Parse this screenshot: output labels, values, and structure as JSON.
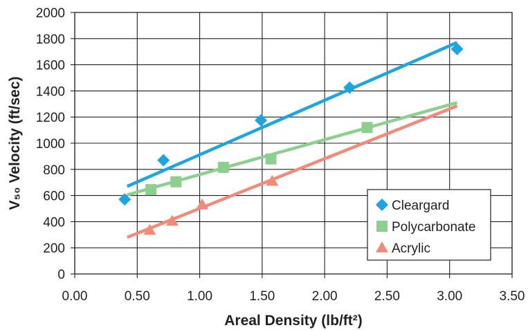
{
  "chart_data": {
    "type": "scatter",
    "xlabel": "Areal Density (lb/ft²)",
    "ylabel": "V₅₀ Velocity (ft/sec)",
    "xlim": [
      0,
      3.5
    ],
    "ylim": [
      0,
      2000
    ],
    "x_ticks": [
      "0.00",
      "0.50",
      "1.00",
      "1.50",
      "2.00",
      "2.50",
      "3.00",
      "3.50"
    ],
    "y_ticks": [
      "0",
      "200",
      "400",
      "600",
      "800",
      "1000",
      "1200",
      "1400",
      "1600",
      "1800",
      "2000"
    ],
    "grid": true,
    "legend_position": "bottom-right",
    "series": [
      {
        "name": "Cleargard",
        "marker": "diamond",
        "color": "#1ba6e0",
        "points": [
          [
            0.4,
            570
          ],
          [
            0.71,
            870
          ],
          [
            1.49,
            1175
          ],
          [
            2.2,
            1425
          ],
          [
            3.06,
            1720
          ]
        ],
        "trendline": [
          [
            0.42,
            670
          ],
          [
            3.06,
            1770
          ]
        ]
      },
      {
        "name": "Polycarbonate",
        "marker": "square",
        "color": "#8ccf8e",
        "points": [
          [
            0.61,
            645
          ],
          [
            0.81,
            705
          ],
          [
            1.19,
            815
          ],
          [
            1.57,
            880
          ],
          [
            2.34,
            1120
          ]
        ],
        "trendline": [
          [
            0.42,
            605
          ],
          [
            3.06,
            1310
          ]
        ]
      },
      {
        "name": "Acrylic",
        "marker": "triangle",
        "color": "#f18a79",
        "points": [
          [
            0.6,
            335
          ],
          [
            0.78,
            405
          ],
          [
            1.02,
            530
          ],
          [
            1.58,
            710
          ]
        ],
        "trendline": [
          [
            0.42,
            280
          ],
          [
            3.06,
            1285
          ]
        ]
      }
    ]
  }
}
